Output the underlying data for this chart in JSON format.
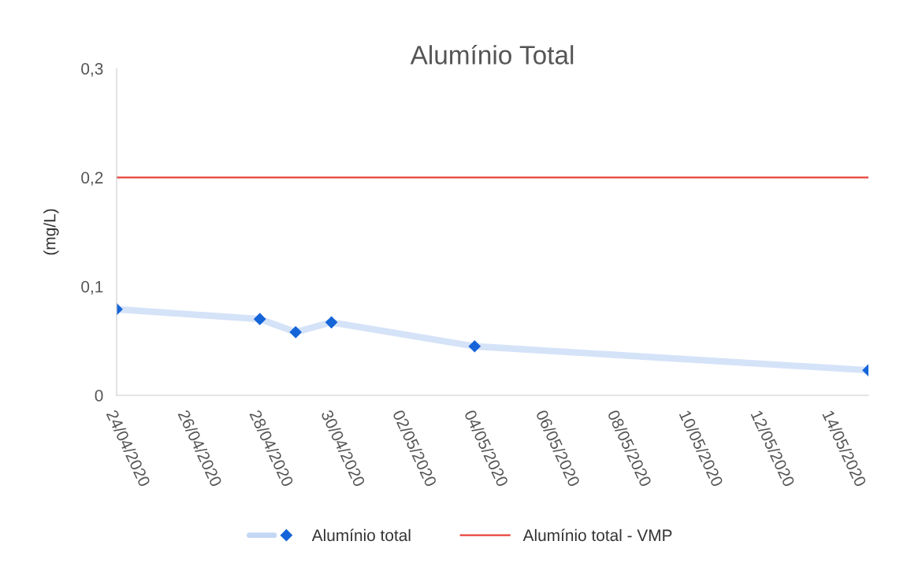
{
  "chart_data": {
    "type": "line",
    "title": "Alumínio Total",
    "ylabel": "(mg/L)",
    "series": [
      {
        "name": "Alumínio total",
        "color": "#1565d8",
        "marker": "diamond",
        "x": [
          "2020-04-24",
          "2020-04-28",
          "2020-04-29",
          "2020-04-30",
          "2020-05-04",
          "2020-05-15"
        ],
        "values": [
          0.079,
          0.07,
          0.058,
          0.067,
          0.045,
          0.023
        ]
      },
      {
        "name": "Alumínio total - VMP",
        "color": "#e8433a",
        "marker": "none",
        "x": [
          "2020-04-24",
          "2020-05-15"
        ],
        "values": [
          0.2,
          0.2
        ]
      }
    ],
    "xlim": [
      "2020-04-24",
      "2020-05-15"
    ],
    "xticks": [
      {
        "value": "2020-04-24",
        "label": "24/04/2020"
      },
      {
        "value": "2020-04-26",
        "label": "26/04/2020"
      },
      {
        "value": "2020-04-28",
        "label": "28/04/2020"
      },
      {
        "value": "2020-04-30",
        "label": "30/04/2020"
      },
      {
        "value": "2020-05-02",
        "label": "02/05/2020"
      },
      {
        "value": "2020-05-04",
        "label": "04/05/2020"
      },
      {
        "value": "2020-05-06",
        "label": "06/05/2020"
      },
      {
        "value": "2020-05-08",
        "label": "08/05/2020"
      },
      {
        "value": "2020-05-10",
        "label": "10/05/2020"
      },
      {
        "value": "2020-05-12",
        "label": "12/05/2020"
      },
      {
        "value": "2020-05-14",
        "label": "14/05/2020"
      }
    ],
    "ylim": [
      0,
      0.3
    ],
    "yticks": [
      {
        "value": 0,
        "label": "0"
      },
      {
        "value": 0.1,
        "label": "0,1"
      },
      {
        "value": 0.2,
        "label": "0,2"
      },
      {
        "value": 0.3,
        "label": "0,3"
      }
    ],
    "grid": false,
    "legend": "bottom",
    "line_style": "solid"
  }
}
